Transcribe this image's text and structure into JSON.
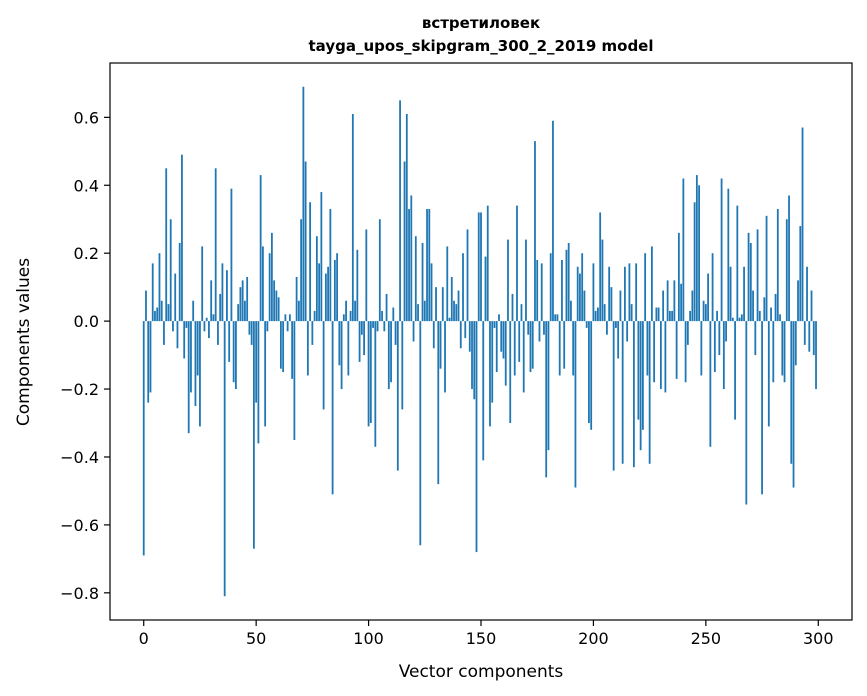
{
  "chart_data": {
    "type": "bar",
    "title": "встретиловек",
    "subtitle": "tayga_upos_skipgram_300_2_2019 model",
    "xlabel": "Vector components",
    "ylabel": "Components values",
    "xlim": [
      -15,
      315
    ],
    "ylim": [
      -0.88,
      0.76
    ],
    "xticks": [
      0,
      50,
      100,
      150,
      200,
      250,
      300
    ],
    "xtick_labels": [
      "0",
      "50",
      "100",
      "150",
      "200",
      "250",
      "300"
    ],
    "yticks": [
      -0.8,
      -0.6,
      -0.4,
      -0.2,
      0.0,
      0.2,
      0.4,
      0.6
    ],
    "ytick_labels": [
      "−0.8",
      "−0.6",
      "−0.4",
      "−0.2",
      "0.0",
      "0.2",
      "0.4",
      "0.6"
    ],
    "grid": false,
    "bar_color": "#1f77b4",
    "values": [
      -0.69,
      0.09,
      -0.24,
      -0.21,
      0.17,
      0.03,
      0.04,
      0.2,
      0.06,
      -0.07,
      0.45,
      0.05,
      0.3,
      -0.03,
      0.14,
      -0.08,
      0.23,
      0.49,
      -0.11,
      -0.02,
      -0.33,
      -0.21,
      0.06,
      -0.25,
      -0.16,
      -0.31,
      0.22,
      -0.03,
      0.01,
      -0.05,
      0.12,
      0.02,
      0.45,
      -0.07,
      0.08,
      0.17,
      -0.81,
      0.15,
      -0.12,
      0.39,
      -0.18,
      -0.2,
      0.05,
      0.1,
      0.12,
      0.06,
      0.13,
      -0.04,
      -0.07,
      -0.67,
      -0.24,
      -0.36,
      0.43,
      0.22,
      -0.31,
      -0.03,
      0.2,
      0.26,
      0.12,
      0.09,
      0.07,
      -0.14,
      -0.15,
      0.02,
      -0.03,
      0.02,
      -0.17,
      -0.35,
      0.13,
      0.06,
      0.3,
      0.69,
      0.47,
      -0.16,
      0.35,
      -0.07,
      0.03,
      0.25,
      0.17,
      0.38,
      -0.26,
      0.14,
      0.16,
      0.33,
      -0.51,
      0.18,
      0.2,
      -0.13,
      -0.2,
      0.02,
      0.06,
      -0.16,
      0.03,
      0.61,
      0.06,
      0.21,
      -0.12,
      -0.04,
      -0.1,
      0.27,
      -0.31,
      -0.3,
      -0.02,
      -0.37,
      -0.03,
      0.3,
      0.03,
      -0.03,
      0.08,
      -0.2,
      -0.18,
      0.04,
      -0.07,
      -0.44,
      0.65,
      -0.26,
      0.47,
      0.61,
      0.33,
      0.37,
      -0.06,
      0.25,
      0.05,
      -0.66,
      0.23,
      0.06,
      0.33,
      0.33,
      0.17,
      -0.08,
      0.1,
      -0.48,
      -0.14,
      0.1,
      -0.21,
      0.22,
      0.01,
      0.13,
      0.06,
      0.05,
      0.09,
      -0.08,
      0.2,
      -0.05,
      0.27,
      -0.09,
      -0.2,
      -0.23,
      -0.68,
      0.32,
      0.32,
      -0.41,
      0.19,
      0.34,
      -0.31,
      -0.24,
      -0.02,
      -0.15,
      0.02,
      -0.09,
      -0.11,
      -0.19,
      0.24,
      -0.3,
      0.08,
      -0.16,
      0.34,
      -0.12,
      0.05,
      -0.21,
      0.24,
      -0.04,
      -0.15,
      -0.14,
      0.53,
      0.18,
      -0.06,
      0.17,
      -0.04,
      -0.46,
      -0.38,
      0.2,
      0.59,
      0.02,
      0.02,
      -0.16,
      0.18,
      -0.14,
      0.21,
      0.23,
      0.06,
      -0.16,
      -0.49,
      0.16,
      0.14,
      0.2,
      0.09,
      -0.02,
      -0.3,
      -0.32,
      0.17,
      0.03,
      0.04,
      0.32,
      0.24,
      0.05,
      -0.04,
      0.16,
      0.1,
      -0.44,
      -0.02,
      -0.11,
      0.09,
      -0.42,
      0.16,
      -0.06,
      0.17,
      0.05,
      -0.43,
      0.17,
      -0.29,
      -0.38,
      -0.32,
      0.2,
      -0.16,
      -0.42,
      0.22,
      -0.18,
      0.04,
      0.04,
      -0.2,
      0.09,
      -0.21,
      0.12,
      0.03,
      0.03,
      0.12,
      -0.17,
      0.26,
      0.11,
      0.42,
      -0.18,
      -0.07,
      0.03,
      0.09,
      0.35,
      0.43,
      0.4,
      -0.16,
      0.06,
      0.05,
      0.14,
      -0.37,
      0.2,
      -0.15,
      0.03,
      -0.1,
      0.42,
      -0.2,
      -0.06,
      0.39,
      0.16,
      0.01,
      -0.29,
      0.34,
      0.01,
      0.02,
      0.16,
      -0.54,
      0.26,
      0.23,
      0.09,
      -0.1,
      0.27,
      0.03,
      -0.51,
      0.07,
      0.31,
      -0.31,
      0.04,
      -0.18,
      0.08,
      0.33,
      0.02,
      -0.16,
      -0.18,
      0.3,
      0.37,
      -0.42,
      -0.49,
      -0.13,
      0.12,
      0.28,
      0.57,
      -0.07,
      0.16,
      -0.09,
      0.09,
      -0.1,
      -0.2
    ]
  }
}
